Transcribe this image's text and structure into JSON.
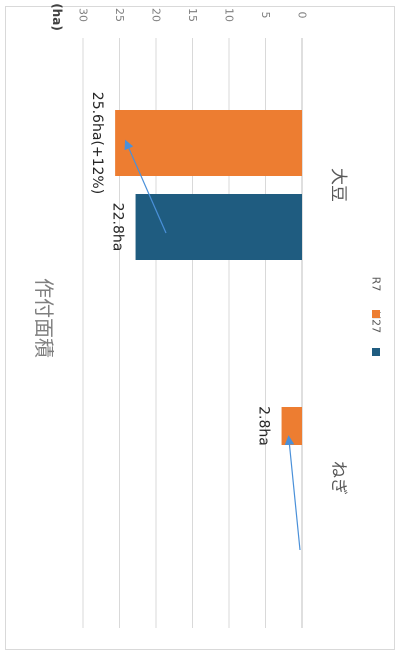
{
  "chart_data": {
    "type": "bar",
    "orientation": "horizontal",
    "title": "作付面積",
    "unit": "(ha)",
    "categories": [
      "大豆",
      "ねぎ"
    ],
    "series": [
      {
        "name": "H27",
        "color": "#1f5c80",
        "values": [
          22.8,
          null
        ]
      },
      {
        "name": "R7",
        "color": "#ed7d31",
        "values": [
          25.6,
          2.8
        ]
      }
    ],
    "data_labels": {
      "大豆": {
        "H27": "22.8ha",
        "R7": "25.6ha(+12%)"
      },
      "ねぎ": {
        "R7": "2.8ha"
      }
    },
    "xlim": [
      0,
      30
    ],
    "ticks": [
      0,
      5,
      10,
      15,
      20,
      25,
      30
    ],
    "grid": true,
    "legend_position": "bottom",
    "arrow_color": "#4a90d9"
  }
}
